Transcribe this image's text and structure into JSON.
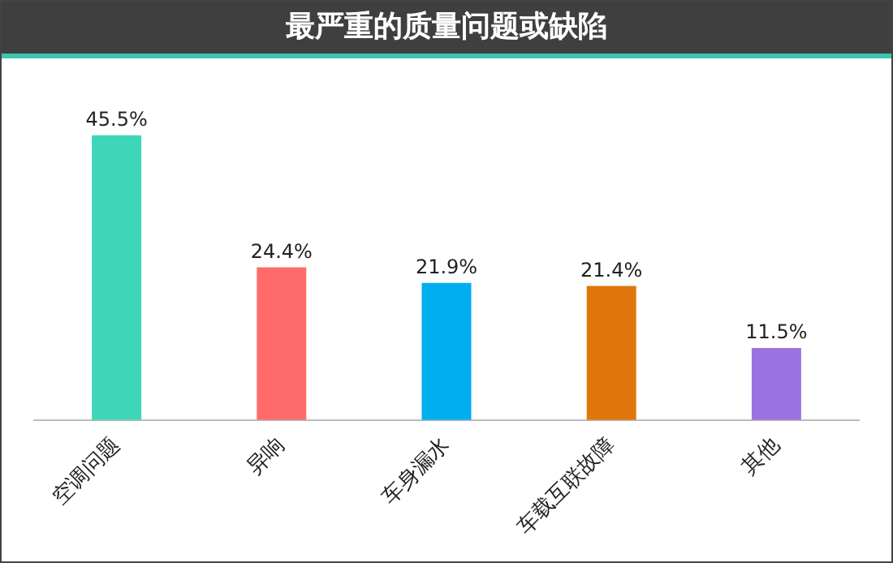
{
  "chart_data": {
    "type": "bar",
    "title": "最严重的质量问题或缺陷",
    "categories": [
      "空调问题",
      "异响",
      "车身漏水",
      "车载互联故障",
      "其他"
    ],
    "values": [
      45.5,
      24.4,
      21.9,
      21.4,
      11.5
    ],
    "colors": [
      "#3dd6b8",
      "#ff6b6b",
      "#00aeef",
      "#e0760b",
      "#9b72e0"
    ],
    "value_labels": [
      "45.5%",
      "24.4%",
      "21.9%",
      "21.4%",
      "11.5%"
    ],
    "grid": false,
    "legend": false
  }
}
